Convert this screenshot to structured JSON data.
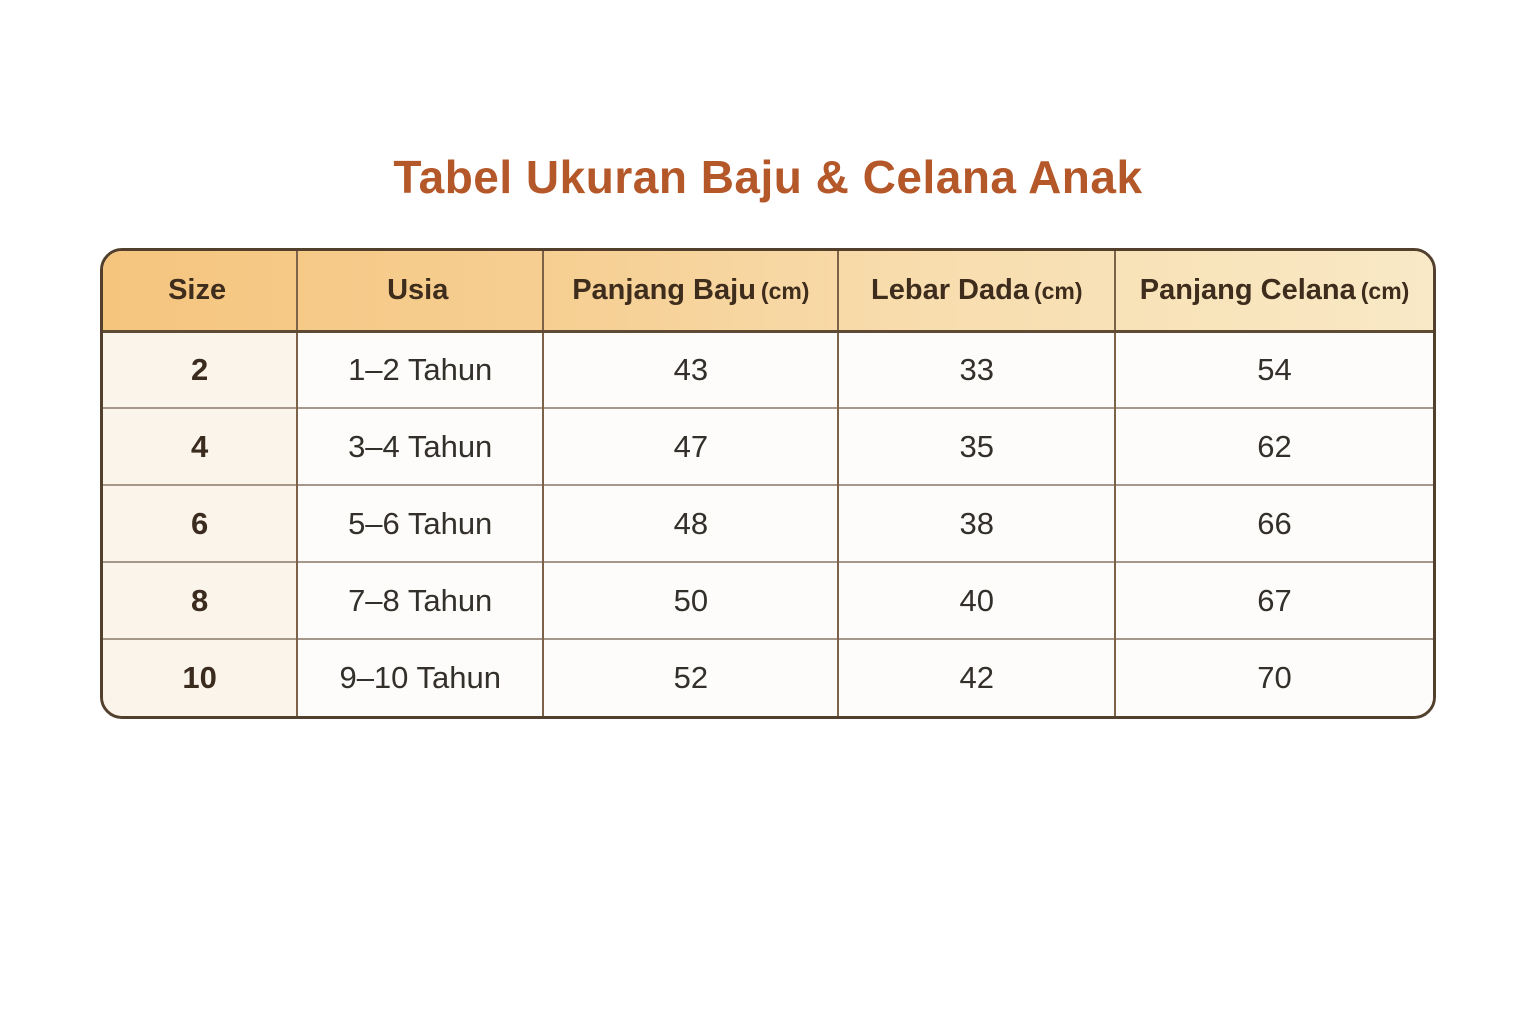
{
  "title": "Tabel Ukuran Baju & Celana Anak",
  "colors": {
    "title_text": "#b4582a",
    "header_gradient_left": "#f5c57e",
    "header_gradient_right": "#f9e9c6",
    "header_text": "#3e2c1c",
    "outer_border": "#52402c",
    "column_divider": "#7b6248",
    "row_divider": "#a5988a",
    "size_column_bg": "#faf4ea",
    "cell_bg": "#fdfcfa",
    "page_bg": "#ffffff"
  },
  "header_display": [
    {
      "label": "Size",
      "unit": ""
    },
    {
      "label": "Usia",
      "unit": ""
    },
    {
      "label": "Panjang Baju",
      "unit": "(cm)"
    },
    {
      "label": "Lebar Dada",
      "unit": "(cm)"
    },
    {
      "label": "Panjang Celana",
      "unit": "(cm)"
    }
  ],
  "chart_data": {
    "type": "table",
    "title": "Tabel Ukuran Baju & Celana Anak",
    "columns": [
      "Size",
      "Usia",
      "Panjang Baju (cm)",
      "Lebar Dada (cm)",
      "Panjang Celana (cm)"
    ],
    "rows": [
      [
        "2",
        "1–2 Tahun",
        43,
        33,
        54
      ],
      [
        "4",
        "3–4 Tahun",
        47,
        35,
        62
      ],
      [
        "6",
        "5–6 Tahun",
        48,
        38,
        66
      ],
      [
        "8",
        "7–8 Tahun",
        50,
        40,
        67
      ],
      [
        "10",
        "9–10 Tahun",
        52,
        42,
        70
      ]
    ]
  }
}
